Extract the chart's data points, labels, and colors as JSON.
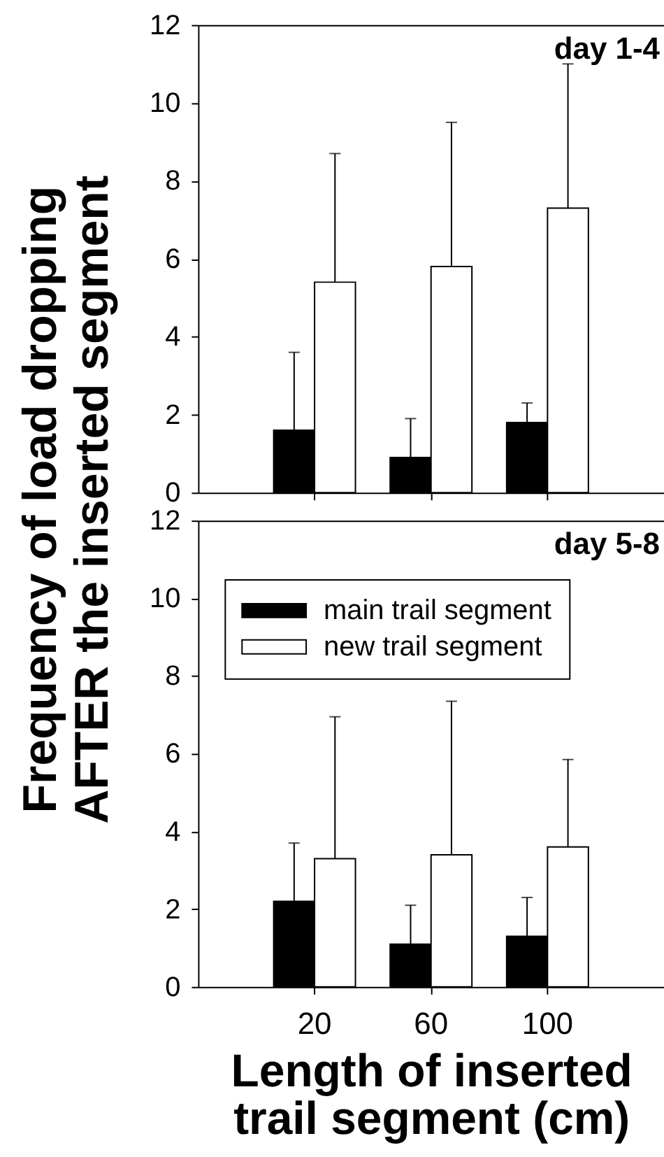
{
  "chart_data": [
    {
      "type": "bar",
      "title": "day 1-4",
      "ylabel": "Frequency of load dropping\nAFTER the inserted segment",
      "categories": [
        "20",
        "60",
        "100"
      ],
      "series": [
        {
          "color": "#000000",
          "values": [
            1.6,
            0.9,
            1.8
          ],
          "errors": [
            [
              1.6,
              3.6
            ],
            [
              0.9,
              1.9
            ],
            [
              1.8,
              2.3
            ]
          ]
        },
        {
          "color": "#ffffff",
          "values": [
            5.4,
            5.8,
            7.3
          ],
          "errors": [
            [
              5.4,
              8.7
            ],
            [
              5.8,
              9.5
            ],
            [
              7.3,
              11.0
            ]
          ]
        }
      ],
      "ylim": [
        0,
        12
      ],
      "yticks": [
        0,
        2,
        4,
        6,
        8,
        10,
        12
      ],
      "tick_labels": "y",
      "grid": false
    },
    {
      "type": "bar",
      "title": "day 5-8",
      "xlabel": "Length of inserted\ntrail segment (cm)",
      "categories": [
        "20",
        "60",
        "100"
      ],
      "series": [
        {
          "name": "main trail segment",
          "color": "#000000",
          "values": [
            2.2,
            1.1,
            1.3
          ],
          "errors": [
            [
              2.2,
              3.7
            ],
            [
              1.1,
              2.1
            ],
            [
              1.3,
              2.3
            ]
          ]
        },
        {
          "name": "new trail segment",
          "color": "#ffffff",
          "values": [
            3.3,
            3.4,
            3.6
          ],
          "errors": [
            [
              3.3,
              6.95
            ],
            [
              3.4,
              7.35
            ],
            [
              3.6,
              5.85
            ]
          ]
        }
      ],
      "ylim": [
        0,
        12
      ],
      "yticks": [
        0,
        2,
        4,
        6,
        8,
        10,
        12
      ],
      "legend": "top left",
      "grid": false
    }
  ]
}
